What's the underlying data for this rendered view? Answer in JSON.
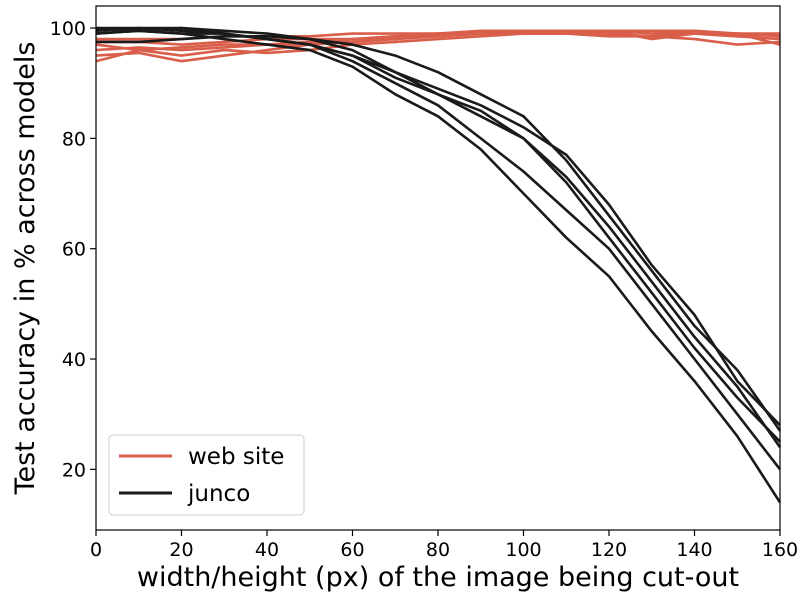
{
  "chart_data": {
    "type": "line",
    "xlabel": "width/height (px) of the image being cut-out",
    "ylabel": "Test accuracy in % across models",
    "xlim": [
      0,
      160
    ],
    "ylim": [
      9,
      104
    ],
    "xticks": [
      0,
      20,
      40,
      60,
      80,
      100,
      120,
      140,
      160
    ],
    "yticks": [
      20,
      40,
      60,
      80,
      100
    ],
    "grid": false,
    "legend_position": "lower-left",
    "legend": [
      {
        "label": "web site",
        "color": "#d95f4a"
      },
      {
        "label": "junco",
        "color": "#1a1a1a"
      }
    ],
    "series": [
      {
        "group": "web site",
        "color": "#d95f4a",
        "points": [
          [
            0,
            94
          ],
          [
            10,
            96
          ],
          [
            20,
            95
          ],
          [
            30,
            96
          ],
          [
            40,
            95.5
          ],
          [
            50,
            96
          ],
          [
            60,
            97
          ],
          [
            70,
            97.5
          ],
          [
            80,
            98
          ],
          [
            90,
            98.5
          ],
          [
            100,
            99
          ],
          [
            110,
            99
          ],
          [
            120,
            99
          ],
          [
            130,
            98.5
          ],
          [
            140,
            99
          ],
          [
            150,
            98.5
          ],
          [
            160,
            98
          ]
        ]
      },
      {
        "group": "web site",
        "color": "#d95f4a",
        "points": [
          [
            0,
            96
          ],
          [
            10,
            96.5
          ],
          [
            20,
            96
          ],
          [
            30,
            96.5
          ],
          [
            40,
            97
          ],
          [
            50,
            97
          ],
          [
            60,
            97.5
          ],
          [
            70,
            98
          ],
          [
            80,
            98.5
          ],
          [
            90,
            99
          ],
          [
            100,
            99
          ],
          [
            110,
            99.5
          ],
          [
            120,
            99.5
          ],
          [
            130,
            99
          ],
          [
            140,
            99
          ],
          [
            150,
            98.5
          ],
          [
            160,
            99
          ]
        ]
      },
      {
        "group": "web site",
        "color": "#d95f4a",
        "points": [
          [
            0,
            97
          ],
          [
            10,
            96
          ],
          [
            20,
            96.5
          ],
          [
            30,
            97
          ],
          [
            40,
            97
          ],
          [
            50,
            97.5
          ],
          [
            60,
            98
          ],
          [
            70,
            98
          ],
          [
            80,
            99
          ],
          [
            90,
            99
          ],
          [
            100,
            99.5
          ],
          [
            110,
            99
          ],
          [
            120,
            99.5
          ],
          [
            130,
            99.5
          ],
          [
            140,
            99
          ],
          [
            150,
            99
          ],
          [
            160,
            98.5
          ]
        ]
      },
      {
        "group": "web site",
        "color": "#d95f4a",
        "points": [
          [
            0,
            98
          ],
          [
            10,
            98
          ],
          [
            20,
            98
          ],
          [
            30,
            98.5
          ],
          [
            40,
            98.5
          ],
          [
            50,
            98.5
          ],
          [
            60,
            99
          ],
          [
            70,
            99
          ],
          [
            80,
            99
          ],
          [
            90,
            99.5
          ],
          [
            100,
            99.5
          ],
          [
            110,
            99.5
          ],
          [
            120,
            99
          ],
          [
            130,
            99.5
          ],
          [
            140,
            99.5
          ],
          [
            150,
            99
          ],
          [
            160,
            99
          ]
        ]
      },
      {
        "group": "web site",
        "color": "#d95f4a",
        "points": [
          [
            0,
            97.5
          ],
          [
            10,
            97.5
          ],
          [
            20,
            97
          ],
          [
            30,
            97.5
          ],
          [
            40,
            98
          ],
          [
            50,
            98
          ],
          [
            60,
            98
          ],
          [
            70,
            98.5
          ],
          [
            80,
            98.5
          ],
          [
            90,
            99
          ],
          [
            100,
            99
          ],
          [
            110,
            99
          ],
          [
            120,
            98.5
          ],
          [
            130,
            98.5
          ],
          [
            140,
            98
          ],
          [
            150,
            97
          ],
          [
            160,
            97.5
          ]
        ]
      },
      {
        "group": "web site",
        "color": "#d95f4a",
        "points": [
          [
            0,
            95
          ],
          [
            10,
            95.5
          ],
          [
            20,
            94
          ],
          [
            30,
            95
          ],
          [
            40,
            96
          ],
          [
            50,
            97
          ],
          [
            60,
            98
          ],
          [
            70,
            98.5
          ],
          [
            80,
            99
          ],
          [
            90,
            99
          ],
          [
            100,
            99
          ],
          [
            110,
            99
          ],
          [
            120,
            99.5
          ],
          [
            130,
            98
          ],
          [
            140,
            99
          ],
          [
            150,
            99
          ],
          [
            160,
            97
          ]
        ]
      },
      {
        "group": "junco",
        "color": "#1a1a1a",
        "points": [
          [
            0,
            100
          ],
          [
            10,
            100
          ],
          [
            20,
            100
          ],
          [
            30,
            99.5
          ],
          [
            40,
            99
          ],
          [
            50,
            98
          ],
          [
            60,
            96
          ],
          [
            70,
            92
          ],
          [
            80,
            89
          ],
          [
            90,
            86
          ],
          [
            100,
            82
          ],
          [
            110,
            77
          ],
          [
            120,
            68
          ],
          [
            130,
            57
          ],
          [
            140,
            48
          ],
          [
            150,
            36
          ],
          [
            160,
            28
          ]
        ]
      },
      {
        "group": "junco",
        "color": "#1a1a1a",
        "points": [
          [
            0,
            99.5
          ],
          [
            10,
            100
          ],
          [
            20,
            99.5
          ],
          [
            30,
            99
          ],
          [
            40,
            98
          ],
          [
            50,
            97
          ],
          [
            60,
            95
          ],
          [
            70,
            91
          ],
          [
            80,
            88
          ],
          [
            90,
            84
          ],
          [
            100,
            80
          ],
          [
            110,
            72
          ],
          [
            120,
            62
          ],
          [
            130,
            52
          ],
          [
            140,
            42
          ],
          [
            150,
            33
          ],
          [
            160,
            25
          ]
        ]
      },
      {
        "group": "junco",
        "color": "#1a1a1a",
        "points": [
          [
            0,
            99
          ],
          [
            10,
            99.5
          ],
          [
            20,
            99
          ],
          [
            30,
            99
          ],
          [
            40,
            98
          ],
          [
            50,
            97
          ],
          [
            60,
            94
          ],
          [
            70,
            90
          ],
          [
            80,
            86
          ],
          [
            90,
            80
          ],
          [
            100,
            74
          ],
          [
            110,
            67
          ],
          [
            120,
            60
          ],
          [
            130,
            50
          ],
          [
            140,
            40
          ],
          [
            150,
            30
          ],
          [
            160,
            20
          ]
        ]
      },
      {
        "group": "junco",
        "color": "#1a1a1a",
        "points": [
          [
            0,
            100
          ],
          [
            10,
            99.5
          ],
          [
            20,
            99
          ],
          [
            30,
            98
          ],
          [
            40,
            97
          ],
          [
            50,
            96
          ],
          [
            60,
            93
          ],
          [
            70,
            88
          ],
          [
            80,
            84
          ],
          [
            90,
            78
          ],
          [
            100,
            70
          ],
          [
            110,
            62
          ],
          [
            120,
            55
          ],
          [
            130,
            45
          ],
          [
            140,
            36
          ],
          [
            150,
            26
          ],
          [
            160,
            14
          ]
        ]
      },
      {
        "group": "junco",
        "color": "#1a1a1a",
        "points": [
          [
            0,
            97.5
          ],
          [
            10,
            97.5
          ],
          [
            20,
            98
          ],
          [
            30,
            98.5
          ],
          [
            40,
            98.5
          ],
          [
            50,
            98
          ],
          [
            60,
            97
          ],
          [
            70,
            95
          ],
          [
            80,
            92
          ],
          [
            90,
            88
          ],
          [
            100,
            84
          ],
          [
            110,
            76
          ],
          [
            120,
            66
          ],
          [
            130,
            56
          ],
          [
            140,
            46
          ],
          [
            150,
            38
          ],
          [
            160,
            27
          ]
        ]
      },
      {
        "group": "junco",
        "color": "#1a1a1a",
        "points": [
          [
            0,
            99
          ],
          [
            10,
            99.5
          ],
          [
            20,
            100
          ],
          [
            30,
            99
          ],
          [
            40,
            98
          ],
          [
            50,
            97
          ],
          [
            60,
            95
          ],
          [
            70,
            92
          ],
          [
            80,
            88
          ],
          [
            90,
            85
          ],
          [
            100,
            80
          ],
          [
            110,
            73
          ],
          [
            120,
            64
          ],
          [
            130,
            54
          ],
          [
            140,
            44
          ],
          [
            150,
            35
          ],
          [
            160,
            24
          ]
        ]
      }
    ]
  }
}
